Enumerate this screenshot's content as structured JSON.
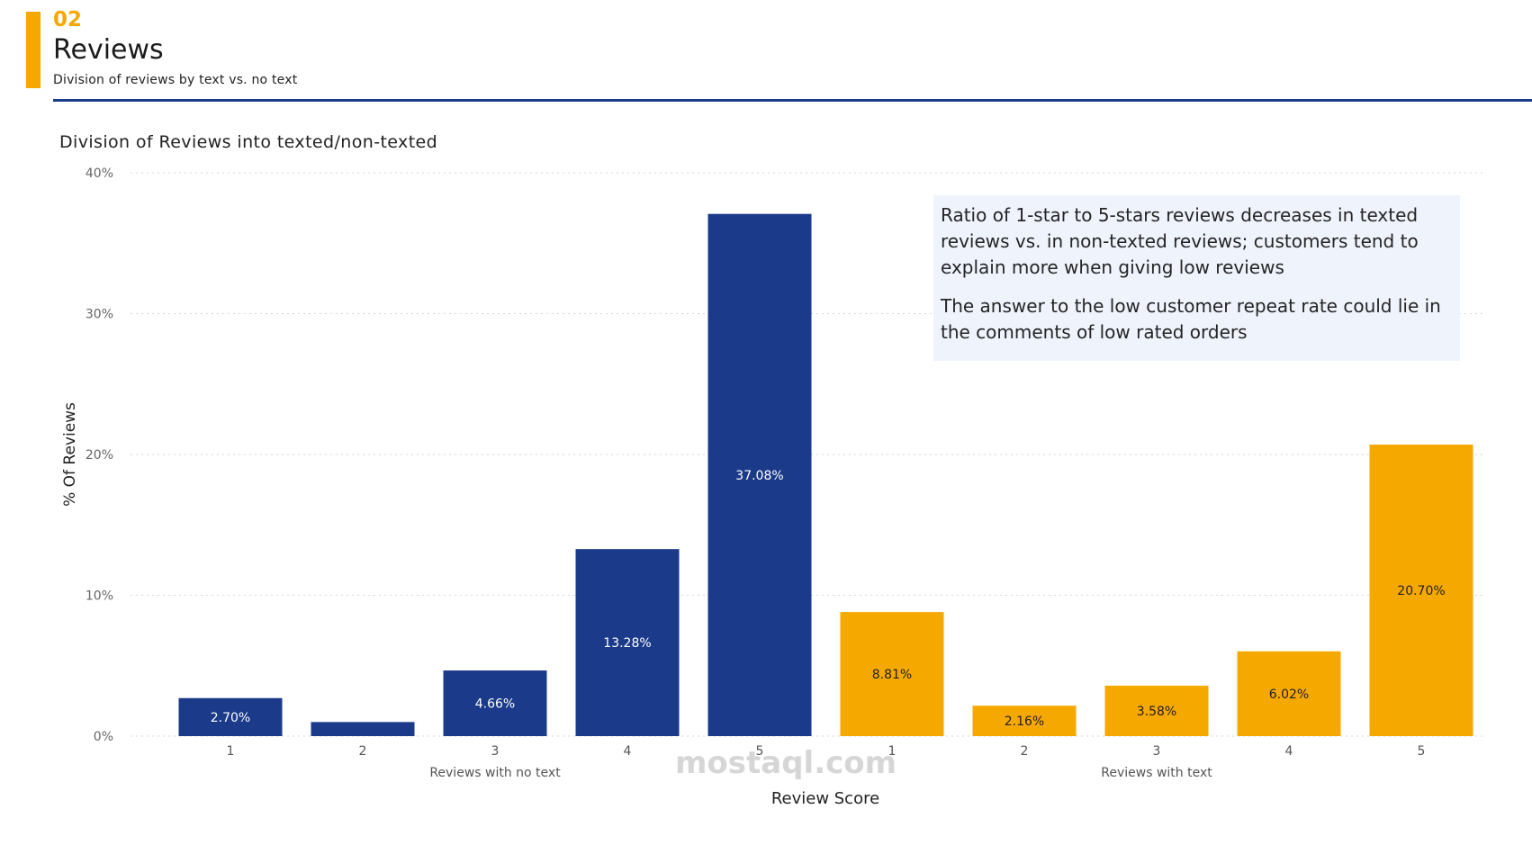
{
  "header": {
    "section_number": "02",
    "title": "Reviews",
    "subtitle": "Division of reviews by text vs. no text"
  },
  "colors": {
    "accent": "#F5A800",
    "primary": "#1B3A8A",
    "note_bg": "#EEF3FC"
  },
  "note": {
    "paragraph1": "Ratio of 1-star to 5-stars reviews decreases in texted reviews vs. in non-texted reviews; customers tend to explain more when giving low reviews",
    "paragraph2": "The answer to the low customer repeat rate could lie in the comments of low rated orders"
  },
  "watermark": "mostaql.com",
  "chart_data": {
    "type": "bar",
    "title": "Division of Reviews into texted/non-texted",
    "xlabel": "Review Score",
    "ylabel": "% Of Reviews",
    "ylim": [
      0,
      40
    ],
    "yticks": [
      "0%",
      "10%",
      "20%",
      "30%",
      "40%"
    ],
    "grid": true,
    "groups": [
      {
        "name": "Reviews with no text",
        "color": "#1B3A8A",
        "categories": [
          "1",
          "2",
          "3",
          "4",
          "5"
        ],
        "values": [
          2.7,
          1.0,
          4.66,
          13.28,
          37.08
        ],
        "labels": [
          "2.70%",
          "",
          "4.66%",
          "13.28%",
          "37.08%"
        ]
      },
      {
        "name": "Reviews with text",
        "color": "#F5A800",
        "categories": [
          "1",
          "2",
          "3",
          "4",
          "5"
        ],
        "values": [
          8.81,
          2.16,
          3.58,
          6.02,
          20.7
        ],
        "labels": [
          "8.81%",
          "2.16%",
          "3.58%",
          "6.02%",
          "20.70%"
        ]
      }
    ]
  }
}
